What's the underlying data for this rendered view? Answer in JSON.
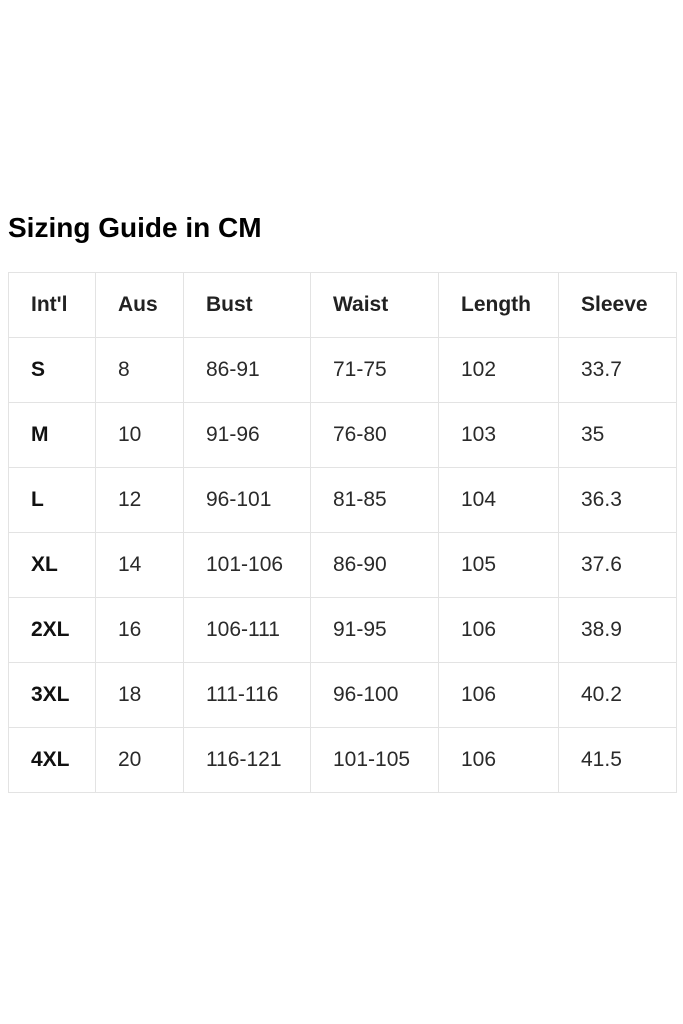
{
  "title": "Sizing Guide in CM",
  "table": {
    "headers": [
      "Int'l",
      "Aus",
      "Bust",
      "Waist",
      "Length",
      "Sleeve"
    ],
    "rows": [
      [
        "S",
        "8",
        "86-91",
        "71-75",
        "102",
        "33.7"
      ],
      [
        "M",
        "10",
        "91-96",
        "76-80",
        "103",
        "35"
      ],
      [
        "L",
        "12",
        "96-101",
        "81-85",
        "104",
        "36.3"
      ],
      [
        "XL",
        "14",
        "101-106",
        "86-90",
        "105",
        "37.6"
      ],
      [
        "2XL",
        "16",
        "106-111",
        "91-95",
        "106",
        "38.9"
      ],
      [
        "3XL",
        "18",
        "111-116",
        "96-100",
        "106",
        "40.2"
      ],
      [
        "4XL",
        "20",
        "116-121",
        "101-105",
        "106",
        "41.5"
      ]
    ]
  }
}
